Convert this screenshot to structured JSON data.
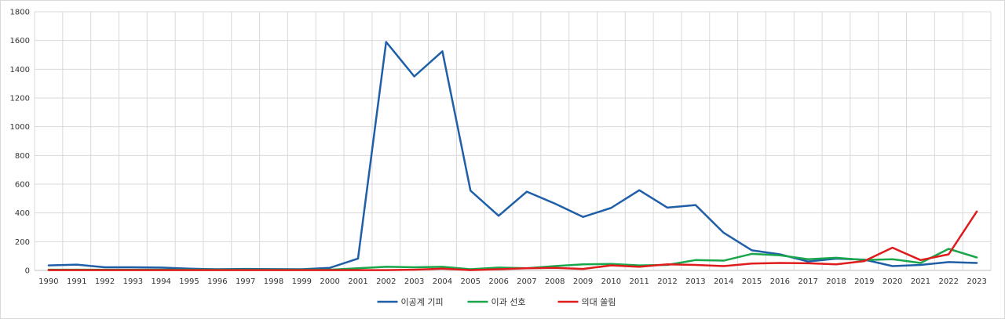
{
  "chart_data": {
    "type": "line",
    "title": "",
    "xlabel": "",
    "ylabel": "",
    "ylim": [
      0,
      1800
    ],
    "yticks": [
      0,
      200,
      400,
      600,
      800,
      1000,
      1200,
      1400,
      1600,
      1800
    ],
    "grid": true,
    "legend_position": "bottom",
    "categories": [
      "1990",
      "1991",
      "1992",
      "1993",
      "1994",
      "1995",
      "1996",
      "1997",
      "1998",
      "1999",
      "2000",
      "2001",
      "2002",
      "2003",
      "2004",
      "2005",
      "2006",
      "2007",
      "2008",
      "2009",
      "2010",
      "2011",
      "2012",
      "2013",
      "2014",
      "2015",
      "2016",
      "2017",
      "2018",
      "2019",
      "2020",
      "2021",
      "2022",
      "2023"
    ],
    "series": [
      {
        "name": "이공계 기피",
        "color": "#1f5fa8",
        "values": [
          35,
          40,
          22,
          22,
          20,
          12,
          8,
          10,
          9,
          8,
          18,
          82,
          1590,
          1350,
          1525,
          555,
          380,
          548,
          465,
          372,
          435,
          558,
          437,
          455,
          262,
          140,
          112,
          62,
          82,
          75,
          30,
          38,
          58,
          52
        ]
      },
      {
        "name": "이과 선호",
        "color": "#1aa64a",
        "values": [
          5,
          5,
          5,
          5,
          5,
          5,
          5,
          5,
          5,
          5,
          5,
          15,
          25,
          22,
          25,
          8,
          20,
          15,
          30,
          42,
          45,
          35,
          38,
          72,
          68,
          115,
          105,
          78,
          88,
          72,
          78,
          52,
          150,
          90
        ]
      },
      {
        "name": "의대 쏠림",
        "color": "#e01b1b",
        "values": [
          2,
          2,
          2,
          2,
          2,
          2,
          2,
          2,
          2,
          2,
          2,
          2,
          2,
          5,
          12,
          2,
          8,
          15,
          18,
          10,
          35,
          25,
          42,
          38,
          30,
          48,
          52,
          50,
          42,
          65,
          158,
          72,
          112,
          410
        ]
      }
    ]
  }
}
